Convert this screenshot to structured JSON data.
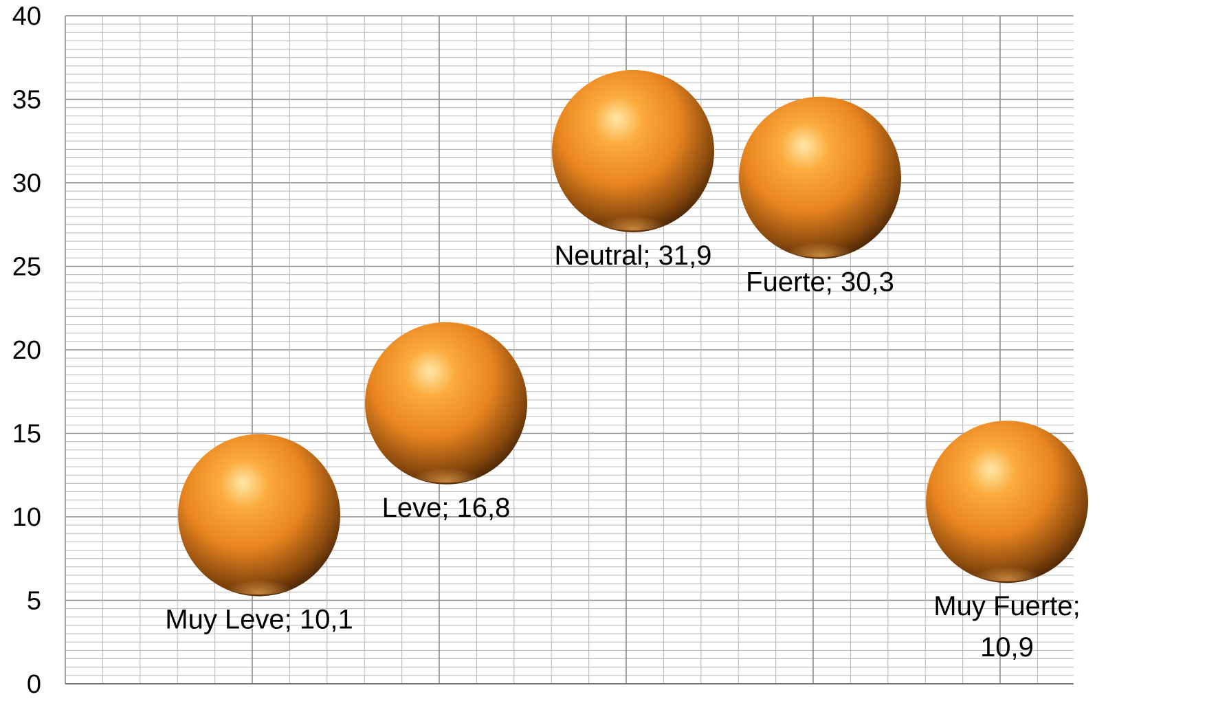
{
  "chart_data": {
    "type": "scatter",
    "title": "",
    "xlabel": "",
    "ylabel": "",
    "ylim": [
      0,
      40
    ],
    "y_ticks": [
      0,
      5,
      10,
      15,
      20,
      25,
      30,
      35,
      40
    ],
    "grid": true,
    "x_categories": [
      "Muy Leve",
      "Leve",
      "Neutral",
      "Fuerte",
      "Muy Fuerte"
    ],
    "points": [
      {
        "category": "Muy Leve",
        "value": 10.1,
        "label_lines": [
          "Muy Leve;  10,1"
        ]
      },
      {
        "category": "Leve",
        "value": 16.8,
        "label_lines": [
          "Leve;  16,8"
        ]
      },
      {
        "category": "Neutral",
        "value": 31.9,
        "label_lines": [
          "Neutral;  31,9"
        ]
      },
      {
        "category": "Fuerte",
        "value": 30.3,
        "label_lines": [
          "Fuerte;  30,3"
        ]
      },
      {
        "category": "Muy Fuerte",
        "value": 10.9,
        "label_lines": [
          "Muy Fuerte;",
          "10,9"
        ]
      }
    ],
    "colors": {
      "sphere_highlight": "#ffe8a8",
      "sphere_mid": "#f79a2a",
      "sphere_dark": "#5a2e05",
      "grid_major": "#8c8c8c",
      "grid_minor": "#b8b8b8"
    }
  }
}
